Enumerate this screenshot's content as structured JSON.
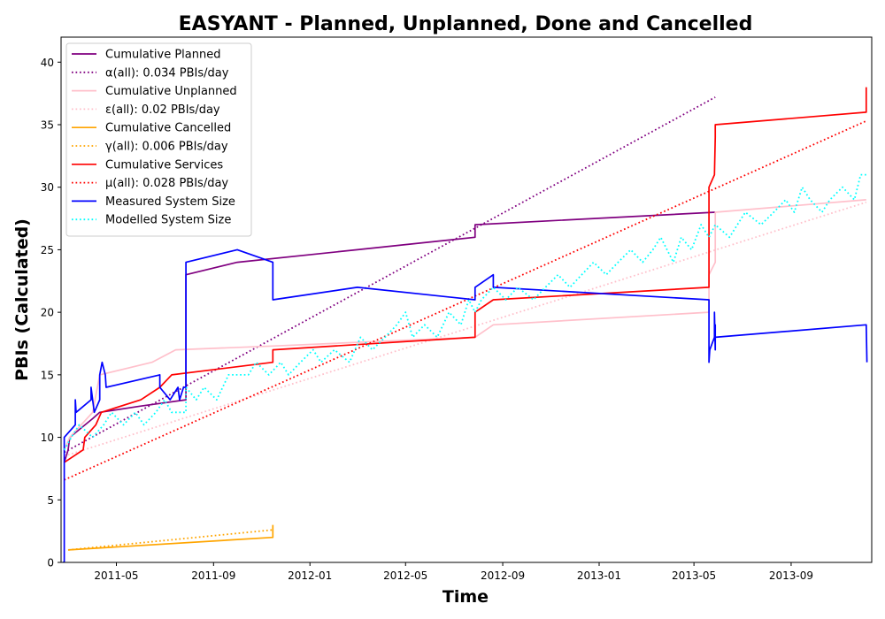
{
  "chart_data": {
    "type": "line",
    "title": "EASYANT - Planned, Unplanned, Done  and Cancelled",
    "xlabel": "Time",
    "ylabel": "PBIs (Calculated)",
    "xlim": [
      "2011-02-20",
      "2013-12-12"
    ],
    "ylim": [
      0,
      42
    ],
    "x_ticks": [
      "2011-05",
      "2011-09",
      "2012-01",
      "2012-05",
      "2012-09",
      "2013-01",
      "2013-05",
      "2013-09"
    ],
    "y_ticks": [
      0,
      5,
      10,
      15,
      20,
      25,
      30,
      35,
      40
    ],
    "grid": false,
    "legend_position": "top-left",
    "series": [
      {
        "name": "Cumulative Planned",
        "style": "solid",
        "color": "#800080",
        "points": [
          [
            "2011-02-24",
            8
          ],
          [
            "2011-03-01",
            9
          ],
          [
            "2011-03-03",
            10
          ],
          [
            "2011-04-01",
            11.5
          ],
          [
            "2011-04-10",
            12
          ],
          [
            "2011-06-01",
            12.5
          ],
          [
            "2011-07-28",
            13
          ],
          [
            "2011-07-28",
            23
          ],
          [
            "2011-10-01",
            24
          ],
          [
            "2012-03-01",
            25
          ],
          [
            "2012-07-28",
            26
          ],
          [
            "2012-07-28",
            27
          ],
          [
            "2013-05-28",
            28
          ]
        ]
      },
      {
        "name": "α(all): 0.034 PBIs/day",
        "style": "dotted",
        "color": "#800080",
        "points": [
          [
            "2011-02-24",
            8.8
          ],
          [
            "2013-05-28",
            37.2
          ]
        ]
      },
      {
        "name": "Cumulative Unplanned",
        "style": "solid",
        "color": "#ffc0cb",
        "points": [
          [
            "2011-02-24",
            9
          ],
          [
            "2011-03-03",
            10
          ],
          [
            "2011-04-01",
            12
          ],
          [
            "2011-04-10",
            15
          ],
          [
            "2011-06-15",
            16
          ],
          [
            "2011-07-15",
            17
          ],
          [
            "2011-11-15",
            17.3
          ],
          [
            "2012-07-28",
            18
          ],
          [
            "2012-08-20",
            19
          ],
          [
            "2013-05-20",
            20
          ],
          [
            "2013-05-20",
            23
          ],
          [
            "2013-05-28",
            24
          ],
          [
            "2013-05-28",
            28
          ],
          [
            "2013-12-05",
            29
          ]
        ]
      },
      {
        "name": "ε(all): 0.02 PBIs/day",
        "style": "dotted",
        "color": "#ffc0cb",
        "points": [
          [
            "2011-02-24",
            8.5
          ],
          [
            "2013-12-05",
            28.8
          ]
        ]
      },
      {
        "name": "Cumulative Cancelled",
        "style": "solid",
        "color": "#ffa500",
        "points": [
          [
            "2011-03-01",
            1
          ],
          [
            "2011-11-15",
            2
          ],
          [
            "2011-11-15",
            3
          ]
        ]
      },
      {
        "name": "γ(all): 0.006 PBIs/day",
        "style": "dotted",
        "color": "#ffa500",
        "points": [
          [
            "2011-03-01",
            1
          ],
          [
            "2011-11-15",
            2.6
          ]
        ]
      },
      {
        "name": "Cumulative Services",
        "style": "solid",
        "color": "#ff0000",
        "points": [
          [
            "2011-02-24",
            8
          ],
          [
            "2011-03-20",
            9
          ],
          [
            "2011-03-22",
            10
          ],
          [
            "2011-04-05",
            11
          ],
          [
            "2011-04-12",
            12
          ],
          [
            "2011-06-01",
            13
          ],
          [
            "2011-06-25",
            14
          ],
          [
            "2011-07-10",
            15
          ],
          [
            "2011-11-15",
            16
          ],
          [
            "2011-11-15",
            17
          ],
          [
            "2012-07-28",
            18
          ],
          [
            "2012-07-28",
            20
          ],
          [
            "2012-08-20",
            21
          ],
          [
            "2013-05-20",
            22
          ],
          [
            "2013-05-20",
            30
          ],
          [
            "2013-05-27",
            31
          ],
          [
            "2013-05-28",
            34
          ],
          [
            "2013-05-28",
            35
          ],
          [
            "2013-12-05",
            36
          ],
          [
            "2013-12-05",
            38
          ]
        ]
      },
      {
        "name": "μ(all): 0.028 PBIs/day",
        "style": "dotted",
        "color": "#ff0000",
        "points": [
          [
            "2011-02-24",
            6.6
          ],
          [
            "2013-12-05",
            35.3
          ]
        ]
      },
      {
        "name": "Measured System Size",
        "style": "solid",
        "color": "#0000ff",
        "points": [
          [
            "2011-02-22",
            0
          ],
          [
            "2011-02-24",
            0
          ],
          [
            "2011-02-24",
            10
          ],
          [
            "2011-03-10",
            11
          ],
          [
            "2011-03-10",
            13
          ],
          [
            "2011-03-11",
            12
          ],
          [
            "2011-03-30",
            13
          ],
          [
            "2011-03-30",
            14
          ],
          [
            "2011-04-03",
            12
          ],
          [
            "2011-04-10",
            13
          ],
          [
            "2011-04-10",
            15
          ],
          [
            "2011-04-13",
            16
          ],
          [
            "2011-04-17",
            15
          ],
          [
            "2011-04-18",
            14
          ],
          [
            "2011-06-25",
            15
          ],
          [
            "2011-06-25",
            14
          ],
          [
            "2011-07-08",
            13
          ],
          [
            "2011-07-18",
            14
          ],
          [
            "2011-07-20",
            13
          ],
          [
            "2011-07-25",
            14
          ],
          [
            "2011-07-28",
            14
          ],
          [
            "2011-07-28",
            24
          ],
          [
            "2011-10-01",
            25
          ],
          [
            "2011-11-15",
            24
          ],
          [
            "2011-11-15",
            21
          ],
          [
            "2012-03-01",
            22
          ],
          [
            "2012-07-28",
            21
          ],
          [
            "2012-07-28",
            22
          ],
          [
            "2012-08-20",
            23
          ],
          [
            "2012-08-20",
            22
          ],
          [
            "2013-05-20",
            21
          ],
          [
            "2013-05-20",
            16
          ],
          [
            "2013-05-21",
            17
          ],
          [
            "2013-05-27",
            18
          ],
          [
            "2013-05-27",
            20
          ],
          [
            "2013-05-28",
            17
          ],
          [
            "2013-05-28",
            19
          ],
          [
            "2013-05-28",
            18
          ],
          [
            "2013-12-05",
            19
          ],
          [
            "2013-12-06",
            16
          ]
        ]
      },
      {
        "name": "Modelled System Size",
        "style": "dotted",
        "color": "#00ffff",
        "points": [
          [
            "2011-02-24",
            9
          ],
          [
            "2011-03-05",
            10
          ],
          [
            "2011-03-15",
            11
          ],
          [
            "2011-04-01",
            10
          ],
          [
            "2011-04-15",
            11
          ],
          [
            "2011-04-25",
            12
          ],
          [
            "2011-05-10",
            11
          ],
          [
            "2011-05-25",
            12
          ],
          [
            "2011-06-05",
            11
          ],
          [
            "2011-06-20",
            12
          ],
          [
            "2011-07-01",
            13
          ],
          [
            "2011-07-10",
            12
          ],
          [
            "2011-07-28",
            12
          ],
          [
            "2011-07-28",
            14
          ],
          [
            "2011-08-10",
            13
          ],
          [
            "2011-08-20",
            14
          ],
          [
            "2011-09-05",
            13
          ],
          [
            "2011-09-20",
            15
          ],
          [
            "2011-10-15",
            15
          ],
          [
            "2011-10-25",
            16
          ],
          [
            "2011-11-10",
            15
          ],
          [
            "2011-11-25",
            16
          ],
          [
            "2011-12-05",
            15
          ],
          [
            "2011-12-20",
            16
          ],
          [
            "2012-01-05",
            17
          ],
          [
            "2012-01-15",
            16
          ],
          [
            "2012-02-01",
            17
          ],
          [
            "2012-02-20",
            16
          ],
          [
            "2012-03-05",
            18
          ],
          [
            "2012-03-20",
            17
          ],
          [
            "2012-04-05",
            18
          ],
          [
            "2012-04-20",
            19
          ],
          [
            "2012-05-01",
            20
          ],
          [
            "2012-05-10",
            18
          ],
          [
            "2012-05-25",
            19
          ],
          [
            "2012-06-10",
            18
          ],
          [
            "2012-06-25",
            20
          ],
          [
            "2012-07-10",
            19
          ],
          [
            "2012-07-20",
            21
          ],
          [
            "2012-07-28",
            20
          ],
          [
            "2012-08-05",
            21
          ],
          [
            "2012-08-20",
            22
          ],
          [
            "2012-09-05",
            21
          ],
          [
            "2012-09-20",
            22
          ],
          [
            "2012-10-10",
            21
          ],
          [
            "2012-10-25",
            22
          ],
          [
            "2012-11-10",
            23
          ],
          [
            "2012-11-25",
            22
          ],
          [
            "2012-12-10",
            23
          ],
          [
            "2012-12-25",
            24
          ],
          [
            "2013-01-10",
            23
          ],
          [
            "2013-01-25",
            24
          ],
          [
            "2013-02-10",
            25
          ],
          [
            "2013-02-25",
            24
          ],
          [
            "2013-03-10",
            25
          ],
          [
            "2013-03-20",
            26
          ],
          [
            "2013-04-05",
            24
          ],
          [
            "2013-04-15",
            26
          ],
          [
            "2013-04-28",
            25
          ],
          [
            "2013-05-10",
            27
          ],
          [
            "2013-05-20",
            26
          ],
          [
            "2013-05-28",
            27
          ],
          [
            "2013-06-15",
            26
          ],
          [
            "2013-06-25",
            27
          ],
          [
            "2013-07-05",
            28
          ],
          [
            "2013-07-25",
            27
          ],
          [
            "2013-08-10",
            28
          ],
          [
            "2013-08-25",
            29
          ],
          [
            "2013-09-05",
            28
          ],
          [
            "2013-09-15",
            30
          ],
          [
            "2013-09-25",
            29
          ],
          [
            "2013-10-10",
            28
          ],
          [
            "2013-10-20",
            29
          ],
          [
            "2013-11-05",
            30
          ],
          [
            "2013-11-20",
            29
          ],
          [
            "2013-11-28",
            31
          ],
          [
            "2013-12-05",
            31
          ]
        ]
      }
    ]
  }
}
